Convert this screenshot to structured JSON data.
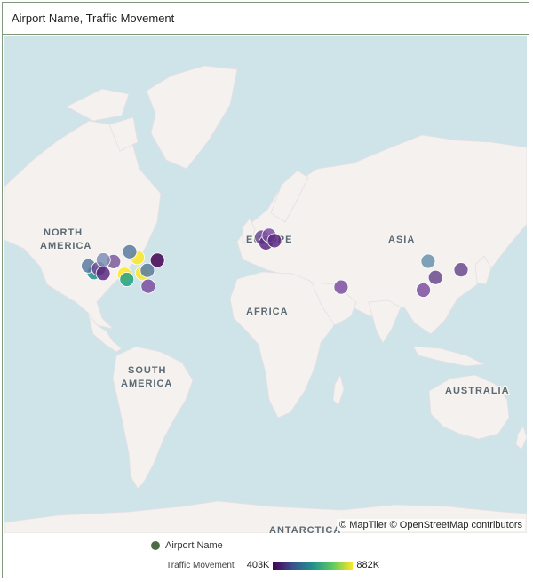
{
  "title": "Airport Name, Traffic Movement",
  "map": {
    "labels": {
      "north_america_1": "NORTH",
      "north_america_2": "AMERICA",
      "south_america_1": "SOUTH",
      "south_america_2": "AMERICA",
      "europe": "EUROPE",
      "asia": "ASIA",
      "africa": "AFRICA",
      "australia": "AUSTRALIA",
      "antarctica": "ANTARCTICA"
    },
    "attribution": "© MapTiler © OpenStreetMap contributors",
    "colors": {
      "ocean": "#cfe4e8",
      "land": "#f4f1ef",
      "border": "#d8b8c3"
    }
  },
  "legend": {
    "name_label": "Airport Name",
    "scale_label": "Traffic Movement",
    "min": "403K",
    "max": "882K",
    "dot_color": "#4c6d43",
    "gradient": [
      "#440154",
      "#3b528b",
      "#21918c",
      "#5ec962",
      "#fde725"
    ]
  },
  "markers": [
    {
      "lon": -73.8,
      "lat": 40.6,
      "color": "#440154"
    },
    {
      "lon": -87.9,
      "lat": 42.0,
      "color": "#fde725"
    },
    {
      "lon": -97.0,
      "lat": 32.9,
      "color": "#fde725"
    },
    {
      "lon": -84.4,
      "lat": 33.6,
      "color": "#fde725"
    },
    {
      "lon": -104.7,
      "lat": 39.9,
      "color": "#7b5a9a"
    },
    {
      "lon": -118.4,
      "lat": 33.9,
      "color": "#21918c"
    },
    {
      "lon": -122.4,
      "lat": 37.6,
      "color": "#5a7aa0"
    },
    {
      "lon": -115.2,
      "lat": 36.1,
      "color": "#6a4a8e"
    },
    {
      "lon": -112.0,
      "lat": 33.4,
      "color": "#5a2a80"
    },
    {
      "lon": -111.9,
      "lat": 40.8,
      "color": "#7f8fb4"
    },
    {
      "lon": -95.3,
      "lat": 29.9,
      "color": "#22a184"
    },
    {
      "lon": -93.3,
      "lat": 44.9,
      "color": "#5a7aa0"
    },
    {
      "lon": -80.9,
      "lat": 35.2,
      "color": "#5a7aa0"
    },
    {
      "lon": -80.3,
      "lat": 25.8,
      "color": "#7b4fa0"
    },
    {
      "lon": -0.45,
      "lat": 51.5,
      "color": "#6a4a8e"
    },
    {
      "lon": 2.55,
      "lat": 49.0,
      "color": "#5a2a80"
    },
    {
      "lon": 4.76,
      "lat": 52.3,
      "color": "#7b4fa0"
    },
    {
      "lon": 8.57,
      "lat": 50.0,
      "color": "#5a2a80"
    },
    {
      "lon": 55.36,
      "lat": 25.25,
      "color": "#7b4fa0"
    },
    {
      "lon": 116.6,
      "lat": 40.1,
      "color": "#6a92ad"
    },
    {
      "lon": 121.8,
      "lat": 31.1,
      "color": "#6a4a8e"
    },
    {
      "lon": 113.3,
      "lat": 23.4,
      "color": "#7b4fa0"
    },
    {
      "lon": 139.8,
      "lat": 35.5,
      "color": "#6a4a8e"
    }
  ]
}
